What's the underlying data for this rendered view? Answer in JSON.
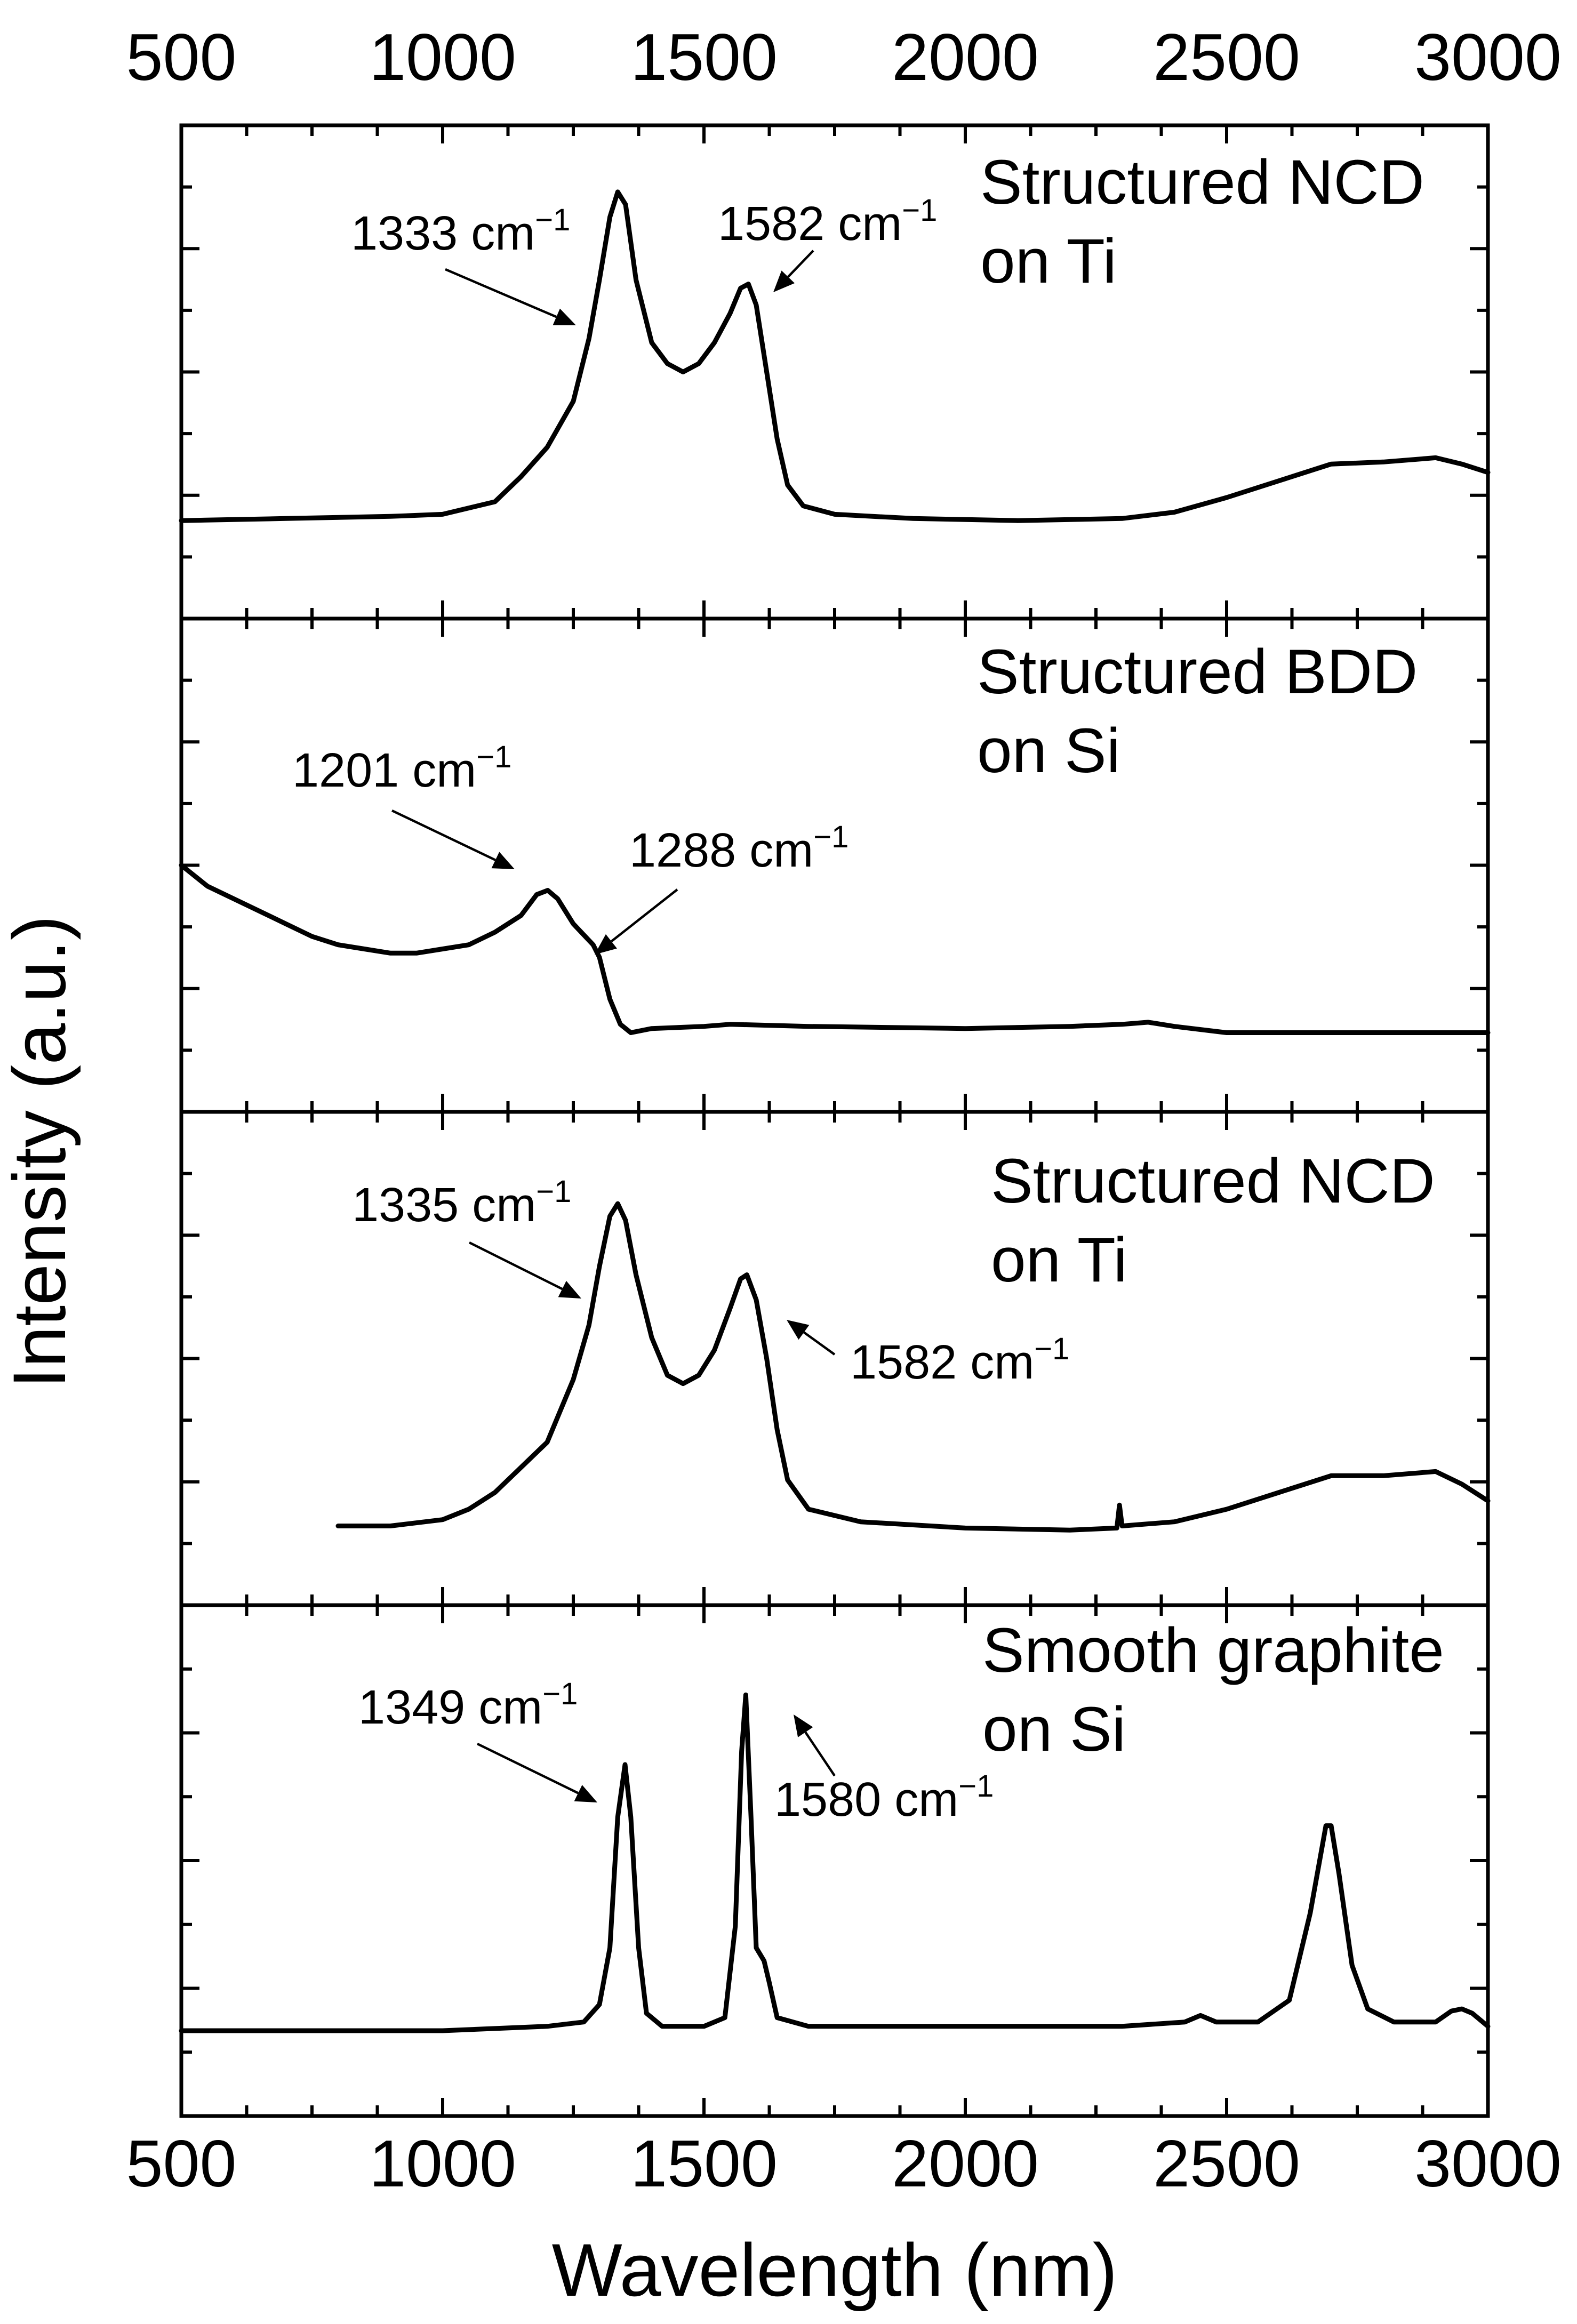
{
  "chart_data": {
    "type": "line",
    "layout": "stacked-panels",
    "xlabel": "Wavelength (nm)",
    "ylabel": "Intensity (a.u.)",
    "xlim": [
      500,
      3000
    ],
    "x_ticks": [
      500,
      1000,
      1500,
      2000,
      2500,
      3000
    ],
    "x_tick_labels": [
      "500",
      "1000",
      "1500",
      "2000",
      "2500",
      "3000"
    ],
    "grid": false,
    "panels": [
      {
        "label_line1": "Structured NCD",
        "label_line2": "on Ti",
        "label_position": "top-right",
        "ylim": [
          0,
          1
        ],
        "series": [
          {
            "name": "Structured NCD on Ti",
            "points": [
              [
                500,
                0.145
              ],
              [
                700,
                0.15
              ],
              [
                900,
                0.155
              ],
              [
                1000,
                0.16
              ],
              [
                1100,
                0.19
              ],
              [
                1150,
                0.25
              ],
              [
                1200,
                0.32
              ],
              [
                1250,
                0.43
              ],
              [
                1280,
                0.58
              ],
              [
                1300,
                0.72
              ],
              [
                1320,
                0.87
              ],
              [
                1335,
                0.93
              ],
              [
                1350,
                0.9
              ],
              [
                1370,
                0.72
              ],
              [
                1400,
                0.57
              ],
              [
                1430,
                0.52
              ],
              [
                1460,
                0.5
              ],
              [
                1490,
                0.52
              ],
              [
                1520,
                0.57
              ],
              [
                1550,
                0.64
              ],
              [
                1570,
                0.7
              ],
              [
                1585,
                0.71
              ],
              [
                1600,
                0.66
              ],
              [
                1620,
                0.5
              ],
              [
                1640,
                0.34
              ],
              [
                1660,
                0.23
              ],
              [
                1690,
                0.18
              ],
              [
                1750,
                0.16
              ],
              [
                1900,
                0.15
              ],
              [
                2100,
                0.145
              ],
              [
                2300,
                0.15
              ],
              [
                2400,
                0.165
              ],
              [
                2500,
                0.2
              ],
              [
                2600,
                0.24
              ],
              [
                2700,
                0.28
              ],
              [
                2800,
                0.285
              ],
              [
                2900,
                0.295
              ],
              [
                2950,
                0.28
              ],
              [
                3000,
                0.26
              ]
            ]
          }
        ],
        "annotations": [
          {
            "text": "1333 cm",
            "superscript": "−1",
            "peak_x": 1333
          },
          {
            "text": "1582 cm",
            "superscript": "−1",
            "peak_x": 1582
          }
        ]
      },
      {
        "label_line1": "Structured BDD",
        "label_line2": "on Si",
        "label_position": "top-right",
        "ylim": [
          0,
          1
        ],
        "series": [
          {
            "name": "Structured BDD on Si",
            "points": [
              [
                500,
                0.5
              ],
              [
                550,
                0.45
              ],
              [
                600,
                0.42
              ],
              [
                650,
                0.39
              ],
              [
                700,
                0.36
              ],
              [
                750,
                0.33
              ],
              [
                800,
                0.31
              ],
              [
                850,
                0.3
              ],
              [
                900,
                0.29
              ],
              [
                950,
                0.29
              ],
              [
                1000,
                0.3
              ],
              [
                1050,
                0.31
              ],
              [
                1100,
                0.34
              ],
              [
                1150,
                0.38
              ],
              [
                1180,
                0.43
              ],
              [
                1201,
                0.44
              ],
              [
                1220,
                0.42
              ],
              [
                1250,
                0.36
              ],
              [
                1288,
                0.31
              ],
              [
                1300,
                0.28
              ],
              [
                1320,
                0.18
              ],
              [
                1340,
                0.12
              ],
              [
                1360,
                0.1
              ],
              [
                1400,
                0.11
              ],
              [
                1500,
                0.115
              ],
              [
                1550,
                0.12
              ],
              [
                1700,
                0.115
              ],
              [
                2000,
                0.11
              ],
              [
                2200,
                0.115
              ],
              [
                2300,
                0.12
              ],
              [
                2350,
                0.125
              ],
              [
                2400,
                0.115
              ],
              [
                2500,
                0.1
              ],
              [
                2800,
                0.1
              ],
              [
                3000,
                0.1
              ]
            ]
          }
        ],
        "annotations": [
          {
            "text": "1201 cm",
            "superscript": "−1",
            "peak_x": 1201
          },
          {
            "text": "1288 cm",
            "superscript": "−1",
            "peak_x": 1288
          }
        ]
      },
      {
        "label_line1": "Structured NCD",
        "label_line2": "on Ti",
        "label_position": "top-right",
        "ylim": [
          0,
          1
        ],
        "series": [
          {
            "name": "Structured NCD on Ti",
            "points": [
              [
                800,
                0.1
              ],
              [
                900,
                0.1
              ],
              [
                1000,
                0.115
              ],
              [
                1050,
                0.14
              ],
              [
                1100,
                0.18
              ],
              [
                1150,
                0.24
              ],
              [
                1200,
                0.3
              ],
              [
                1250,
                0.45
              ],
              [
                1280,
                0.58
              ],
              [
                1300,
                0.72
              ],
              [
                1320,
                0.84
              ],
              [
                1335,
                0.87
              ],
              [
                1350,
                0.83
              ],
              [
                1370,
                0.7
              ],
              [
                1400,
                0.55
              ],
              [
                1430,
                0.46
              ],
              [
                1460,
                0.44
              ],
              [
                1490,
                0.46
              ],
              [
                1520,
                0.52
              ],
              [
                1550,
                0.62
              ],
              [
                1570,
                0.69
              ],
              [
                1582,
                0.7
              ],
              [
                1600,
                0.64
              ],
              [
                1620,
                0.5
              ],
              [
                1640,
                0.33
              ],
              [
                1660,
                0.21
              ],
              [
                1700,
                0.14
              ],
              [
                1800,
                0.11
              ],
              [
                2000,
                0.095
              ],
              [
                2200,
                0.09
              ],
              [
                2290,
                0.095
              ],
              [
                2295,
                0.15
              ],
              [
                2300,
                0.1
              ],
              [
                2400,
                0.11
              ],
              [
                2500,
                0.14
              ],
              [
                2600,
                0.18
              ],
              [
                2700,
                0.22
              ],
              [
                2800,
                0.22
              ],
              [
                2900,
                0.23
              ],
              [
                2950,
                0.2
              ],
              [
                3000,
                0.16
              ]
            ]
          }
        ],
        "annotations": [
          {
            "text": "1335 cm",
            "superscript": "−1",
            "peak_x": 1335
          },
          {
            "text": "1582 cm",
            "superscript": "−1",
            "peak_x": 1582
          }
        ]
      },
      {
        "label_line1": "Smooth graphite",
        "label_line2": "on Si",
        "label_position": "top-right",
        "ylim": [
          0,
          1
        ],
        "series": [
          {
            "name": "Smooth graphite on Si",
            "points": [
              [
                500,
                0.11
              ],
              [
                800,
                0.11
              ],
              [
                1000,
                0.11
              ],
              [
                1100,
                0.115
              ],
              [
                1200,
                0.12
              ],
              [
                1270,
                0.13
              ],
              [
                1300,
                0.17
              ],
              [
                1320,
                0.3
              ],
              [
                1335,
                0.6
              ],
              [
                1349,
                0.72
              ],
              [
                1360,
                0.6
              ],
              [
                1375,
                0.3
              ],
              [
                1390,
                0.15
              ],
              [
                1420,
                0.12
              ],
              [
                1500,
                0.12
              ],
              [
                1540,
                0.14
              ],
              [
                1560,
                0.35
              ],
              [
                1572,
                0.75
              ],
              [
                1580,
                0.88
              ],
              [
                1590,
                0.6
              ],
              [
                1600,
                0.3
              ],
              [
                1615,
                0.27
              ],
              [
                1625,
                0.22
              ],
              [
                1640,
                0.14
              ],
              [
                1700,
                0.12
              ],
              [
                2000,
                0.12
              ],
              [
                2300,
                0.12
              ],
              [
                2420,
                0.13
              ],
              [
                2450,
                0.145
              ],
              [
                2480,
                0.13
              ],
              [
                2560,
                0.13
              ],
              [
                2620,
                0.18
              ],
              [
                2660,
                0.38
              ],
              [
                2690,
                0.58
              ],
              [
                2700,
                0.58
              ],
              [
                2715,
                0.47
              ],
              [
                2740,
                0.26
              ],
              [
                2770,
                0.16
              ],
              [
                2820,
                0.13
              ],
              [
                2900,
                0.13
              ],
              [
                2930,
                0.155
              ],
              [
                2950,
                0.16
              ],
              [
                2970,
                0.15
              ],
              [
                3000,
                0.12
              ]
            ]
          }
        ],
        "annotations": [
          {
            "text": "1349 cm",
            "superscript": "−1",
            "peak_x": 1349
          },
          {
            "text": "1580 cm",
            "superscript": "−1",
            "peak_x": 1580
          }
        ]
      }
    ]
  }
}
